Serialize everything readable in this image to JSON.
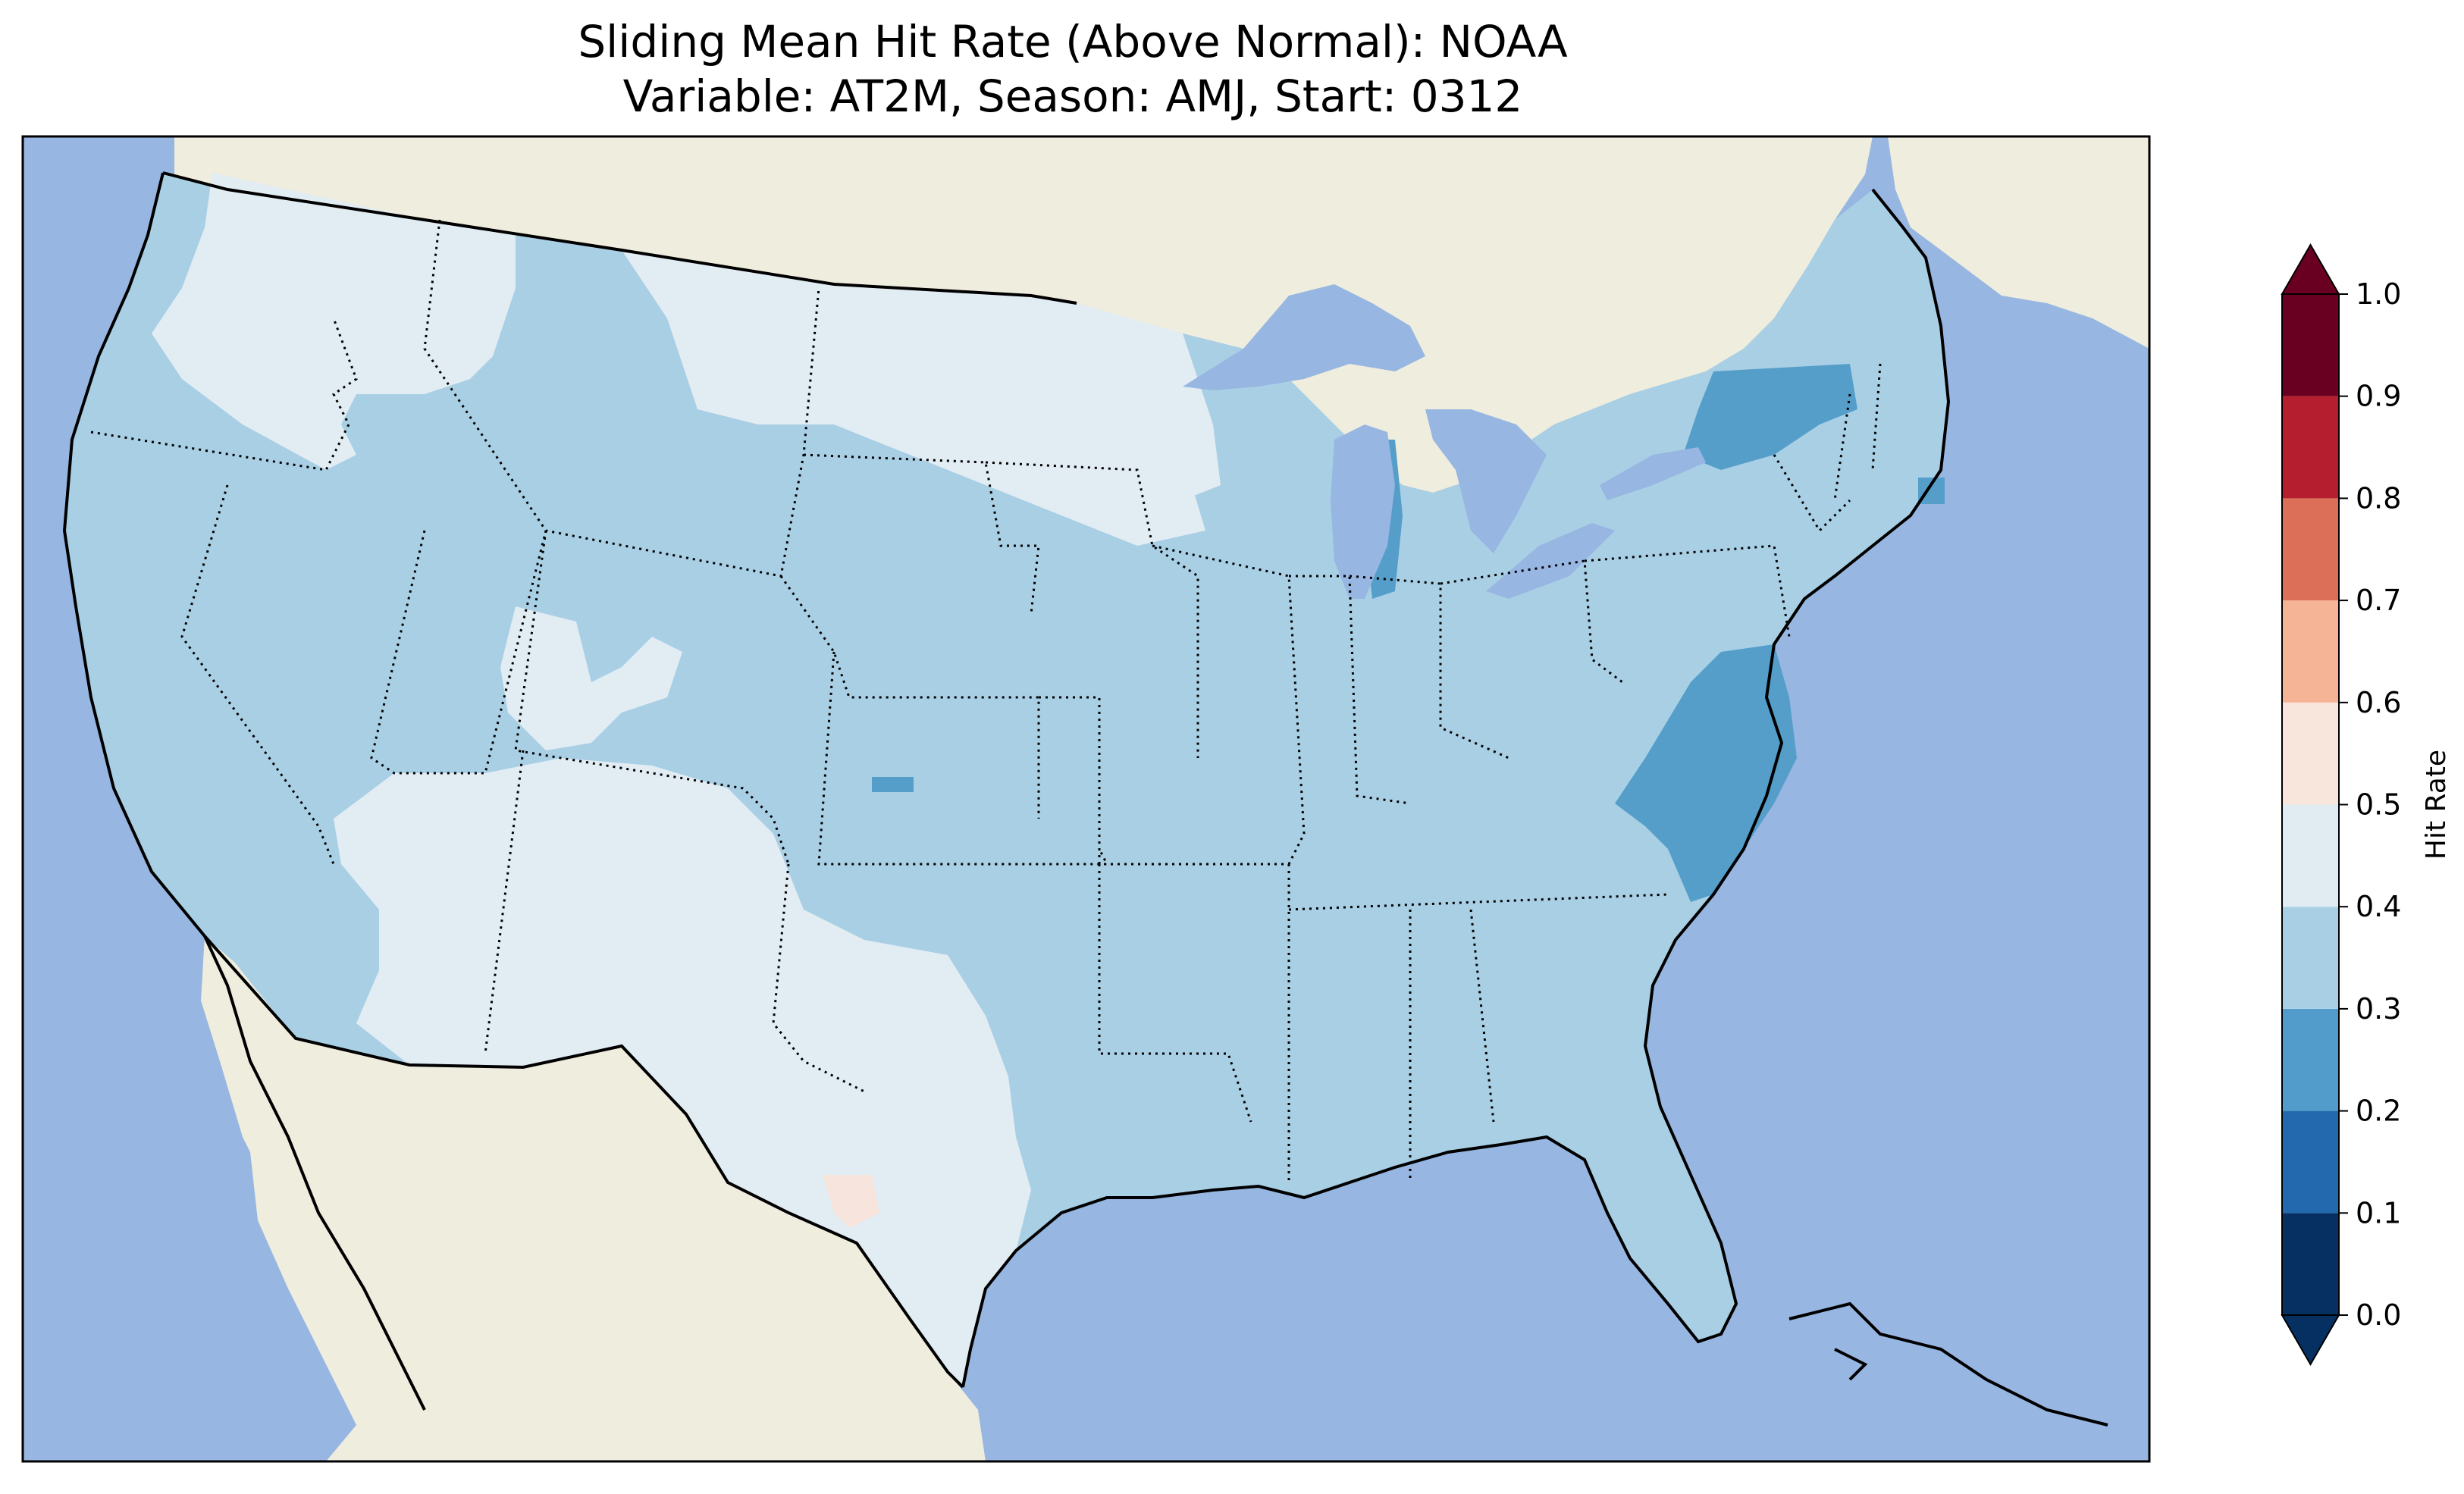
{
  "title": {
    "line1": "Sliding Mean Hit Rate (Above Normal): NOAA",
    "line2": "Variable: AT2M, Season: AMJ, Start: 0312"
  },
  "colors": {
    "ocean": "#97b6e1",
    "foreign_land": "#efedde",
    "value_0_3_to_0_4": "#a9cfe5",
    "value_0_4_to_0_5": "#e2ecf3",
    "value_0_2_to_0_3": "#559ec9",
    "value_0_5_to_0_6": "#f7e4dc"
  },
  "colorbar": {
    "label": "Hit Rate",
    "ticks": [
      "0.0",
      "0.1",
      "0.2",
      "0.3",
      "0.4",
      "0.5",
      "0.6",
      "0.7",
      "0.8",
      "0.9",
      "1.0"
    ],
    "bins": [
      {
        "from": 0.0,
        "to": 0.1,
        "color": "#053061"
      },
      {
        "from": 0.1,
        "to": 0.2,
        "color": "#2369ad"
      },
      {
        "from": 0.2,
        "to": 0.3,
        "color": "#519cca"
      },
      {
        "from": 0.3,
        "to": 0.4,
        "color": "#a9cfe5"
      },
      {
        "from": 0.4,
        "to": 0.5,
        "color": "#e1ecf2"
      },
      {
        "from": 0.5,
        "to": 0.6,
        "color": "#f8e5dc"
      },
      {
        "from": 0.6,
        "to": 0.7,
        "color": "#f5b496"
      },
      {
        "from": 0.7,
        "to": 0.8,
        "color": "#dc6f58"
      },
      {
        "from": 0.8,
        "to": 0.9,
        "color": "#b51e2e"
      },
      {
        "from": 0.9,
        "to": 1.0,
        "color": "#6a0021"
      }
    ],
    "extend": "both"
  }
}
